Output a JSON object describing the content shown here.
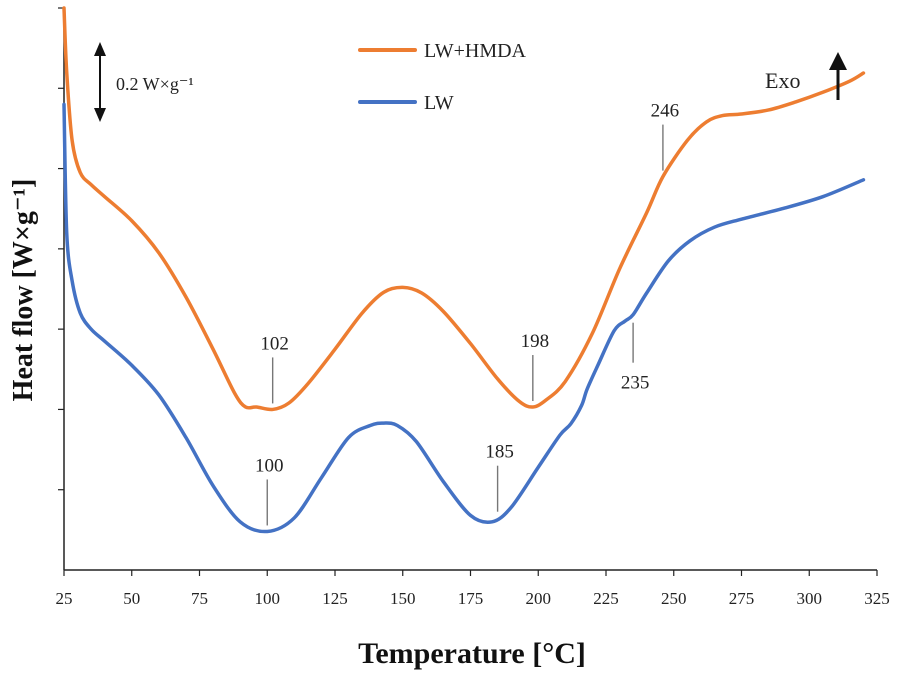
{
  "chart_data": {
    "type": "line",
    "title": "",
    "xlabel": "Temperature [°C]",
    "ylabel": "Heat flow [W×g⁻¹]",
    "xlim": [
      25,
      325
    ],
    "ylim": [
      0,
      7
    ],
    "xticks": [
      25,
      50,
      75,
      100,
      125,
      150,
      175,
      200,
      225,
      250,
      275,
      300,
      325
    ],
    "xtick_labels": [
      "25",
      "50",
      "75",
      "100",
      "125",
      "150",
      "175",
      "200",
      "225",
      "250",
      "275",
      "300",
      "325"
    ],
    "yticks": [
      1,
      2,
      3,
      4,
      5,
      6,
      7
    ],
    "ytick_labels": false,
    "grid": false,
    "legend_position": "top-center",
    "series": [
      {
        "name": "LW+HMDA",
        "color": "#ED7D31",
        "x": [
          25,
          26,
          28,
          31,
          35,
          40,
          50,
          60,
          70,
          80,
          88,
          92,
          96,
          102,
          108,
          115,
          125,
          135,
          143,
          150,
          157,
          165,
          175,
          185,
          193,
          198,
          203,
          210,
          220,
          230,
          240,
          246,
          255,
          262,
          268,
          275,
          285,
          295,
          305,
          315,
          320
        ],
        "y": [
          7.0,
          6.2,
          5.35,
          4.95,
          4.8,
          4.65,
          4.35,
          3.95,
          3.4,
          2.75,
          2.2,
          2.03,
          2.03,
          2.0,
          2.08,
          2.32,
          2.75,
          3.2,
          3.46,
          3.52,
          3.45,
          3.22,
          2.82,
          2.38,
          2.1,
          2.03,
          2.12,
          2.35,
          2.95,
          3.75,
          4.45,
          4.9,
          5.35,
          5.58,
          5.66,
          5.68,
          5.73,
          5.83,
          5.95,
          6.09,
          6.19
        ]
      },
      {
        "name": "LW",
        "color": "#4472C4",
        "x": [
          25,
          26,
          28,
          31,
          35,
          40,
          50,
          60,
          70,
          80,
          90,
          100,
          110,
          120,
          130,
          138,
          143,
          148,
          155,
          165,
          175,
          183,
          190,
          200,
          208,
          212,
          216,
          218,
          222,
          228,
          232,
          235,
          240,
          248,
          256,
          265,
          275,
          290,
          305,
          320
        ],
        "y": [
          5.8,
          4.2,
          3.6,
          3.2,
          3.0,
          2.85,
          2.55,
          2.18,
          1.65,
          1.05,
          0.6,
          0.48,
          0.65,
          1.15,
          1.65,
          1.8,
          1.83,
          1.8,
          1.6,
          1.1,
          0.68,
          0.6,
          0.78,
          1.28,
          1.68,
          1.82,
          2.05,
          2.25,
          2.55,
          2.98,
          3.1,
          3.18,
          3.45,
          3.85,
          4.1,
          4.27,
          4.37,
          4.5,
          4.65,
          4.86
        ]
      }
    ],
    "annotations": [
      {
        "label": "102",
        "x": 102,
        "series": "LW+HMDA",
        "side": "above"
      },
      {
        "label": "198",
        "x": 198,
        "series": "LW+HMDA",
        "side": "above"
      },
      {
        "label": "246",
        "x": 246,
        "series": "LW+HMDA",
        "side": "above"
      },
      {
        "label": "100",
        "x": 100,
        "series": "LW",
        "side": "above"
      },
      {
        "label": "185",
        "x": 185,
        "series": "LW",
        "side": "above"
      },
      {
        "label": "235",
        "x": 235,
        "series": "LW",
        "side": "below"
      }
    ],
    "scale_bar": {
      "label": "0.2  W×g⁻¹"
    },
    "exo_label": "Exo"
  }
}
